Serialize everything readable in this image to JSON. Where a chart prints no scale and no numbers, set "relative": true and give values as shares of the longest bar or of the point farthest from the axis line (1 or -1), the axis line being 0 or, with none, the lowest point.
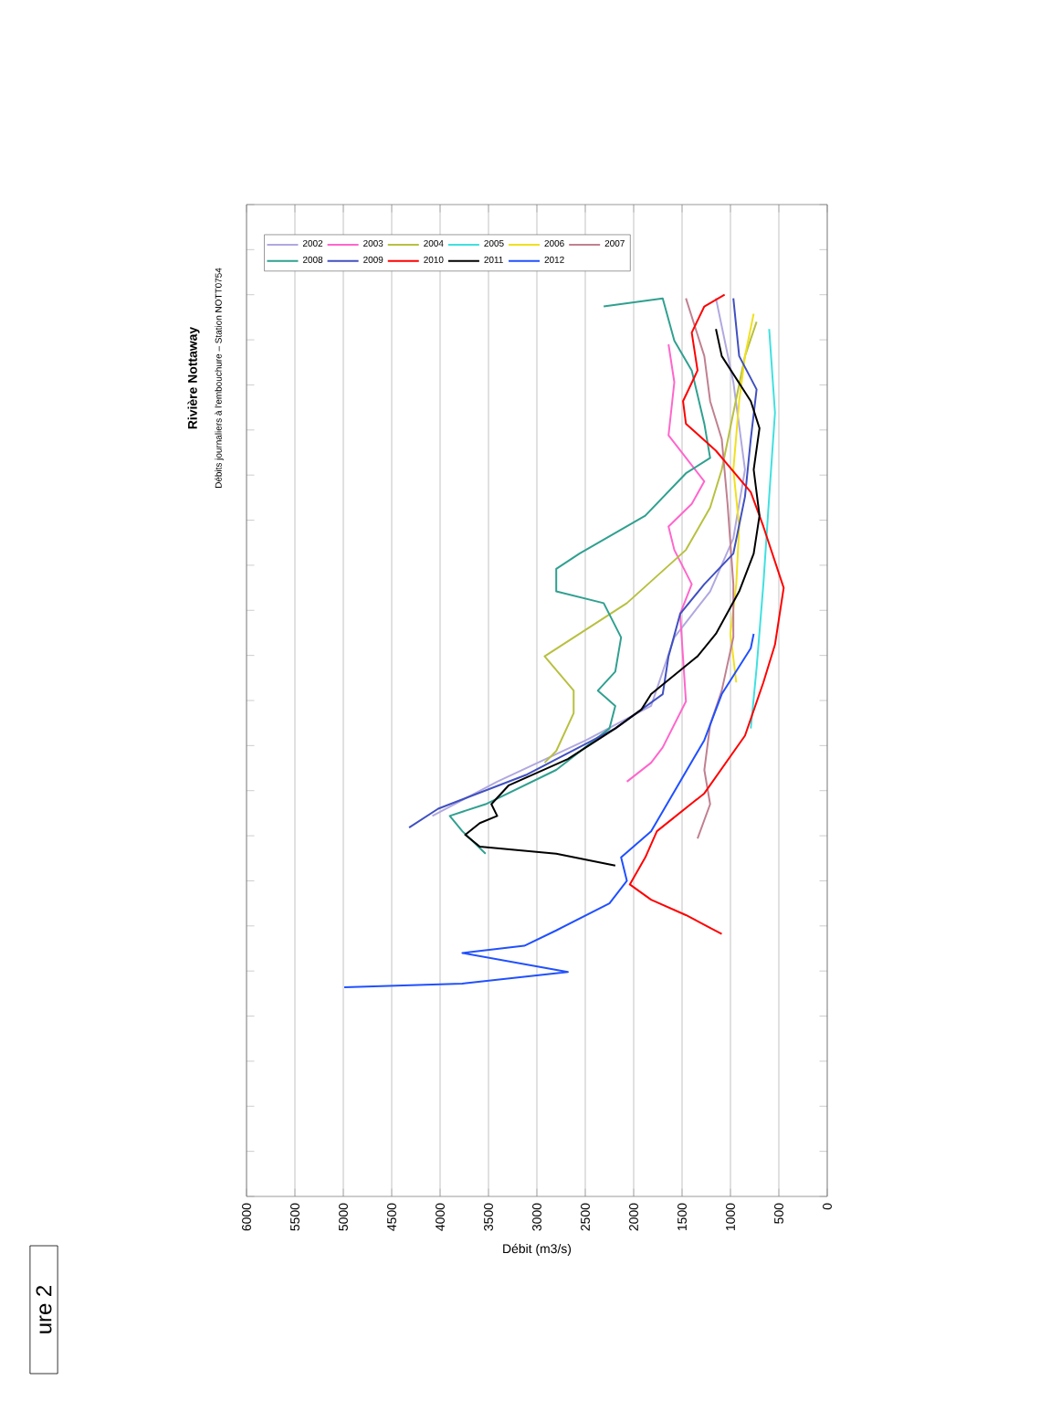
{
  "chart_data": {
    "type": "line",
    "title": "Rivière Nottaway",
    "subtitle": "Débits journaliers à l'embouchure – Station NOTT0754",
    "xlabel": "Débit (m3/s)",
    "annotations": [
      "ure 2"
    ],
    "relative": true,
    "xlim": [
      6000,
      0
    ],
    "xticks": [
      6000,
      5500,
      5000,
      4500,
      4000,
      3500,
      3000,
      2500,
      2000,
      1500,
      1000,
      500,
      0
    ],
    "grid": "x",
    "legend": "top left",
    "series": [
      {
        "name": "2002",
        "color": "#b0a8e0",
        "values": [
          0.996,
          0.903,
          0.806,
          0.73,
          0.671,
          0.62,
          0.544,
          0.506,
          0.46,
          0.422
        ],
        "x": [
          1150,
          970,
          850,
          970,
          1210,
          1580,
          1820,
          2490,
          3410,
          4080
        ]
      },
      {
        "name": "2003",
        "color": "#ff66cc",
        "values": [
          0.945,
          0.903,
          0.844,
          0.793,
          0.768,
          0.743,
          0.717,
          0.679,
          0.646,
          0.549,
          0.498,
          0.481,
          0.46
        ],
        "x": [
          1640,
          1580,
          1640,
          1270,
          1400,
          1640,
          1580,
          1400,
          1520,
          1460,
          1700,
          1820,
          2070
        ]
      },
      {
        "name": "2004",
        "color": "#b8c040",
        "values": [
          0.97,
          0.932,
          0.869,
          0.806,
          0.764,
          0.717,
          0.658,
          0.599,
          0.561,
          0.536,
          0.494,
          0.481
        ],
        "x": [
          730,
          850,
          970,
          1090,
          1210,
          1460,
          2070,
          2920,
          2620,
          2620,
          2800,
          2920
        ]
      },
      {
        "name": "2005",
        "color": "#40e0e0",
        "values": [
          0.962,
          0.869,
          0.776,
          0.679,
          0.586,
          0.519
        ],
        "x": [
          600,
          540,
          600,
          660,
          730,
          790
        ]
      },
      {
        "name": "2006",
        "color": "#f0e020",
        "values": [
          0.979,
          0.932,
          0.882,
          0.806,
          0.743,
          0.679,
          0.624,
          0.57
        ],
        "x": [
          760,
          850,
          910,
          970,
          910,
          940,
          1000,
          940
        ]
      },
      {
        "name": "2007",
        "color": "#c08090",
        "values": [
          0.996,
          0.932,
          0.882,
          0.84,
          0.768,
          0.679,
          0.62,
          0.561,
          0.523,
          0.473,
          0.435,
          0.397
        ],
        "x": [
          1460,
          1270,
          1210,
          1090,
          1030,
          970,
          970,
          1090,
          1210,
          1270,
          1210,
          1340
        ]
      },
      {
        "name": "2008",
        "color": "#30a090",
        "values": [
          0.987,
          0.996,
          0.949,
          0.916,
          0.857,
          0.819,
          0.802,
          0.755,
          0.713,
          0.696,
          0.671,
          0.658,
          0.62,
          0.582,
          0.561,
          0.544,
          0.519,
          0.473,
          0.435,
          0.422,
          0.405,
          0.38
        ],
        "x": [
          2310,
          1700,
          1580,
          1400,
          1270,
          1210,
          1460,
          1880,
          2560,
          2800,
          2800,
          2310,
          2130,
          2190,
          2370,
          2190,
          2250,
          2800,
          3530,
          3900,
          3770,
          3530
        ]
      },
      {
        "name": "2009",
        "color": "#4050c0",
        "values": [
          0.996,
          0.932,
          0.895,
          0.84,
          0.776,
          0.713,
          0.679,
          0.646,
          0.599,
          0.557,
          0.519,
          0.468,
          0.43,
          0.409
        ],
        "x": [
          970,
          910,
          730,
          790,
          850,
          970,
          1270,
          1520,
          1640,
          1700,
          2190,
          3100,
          4020,
          4320
        ]
      },
      {
        "name": "2010",
        "color": "#ff0000",
        "values": [
          0.291,
          0.312,
          0.329,
          0.346,
          0.376,
          0.405,
          0.447,
          0.511,
          0.57,
          0.612,
          0.675,
          0.743,
          0.781,
          0.827,
          0.857,
          0.882,
          0.916,
          0.958,
          0.987,
          1
        ],
        "x": [
          1090,
          1460,
          1820,
          2040,
          1880,
          1760,
          1270,
          850,
          660,
          540,
          450,
          660,
          790,
          1150,
          1460,
          1490,
          1340,
          1400,
          1270,
          1060
        ]
      },
      {
        "name": "2011",
        "color": "#000000",
        "values": [
          0.367,
          0.38,
          0.388,
          0.401,
          0.414,
          0.422,
          0.435,
          0.456,
          0.485,
          0.519,
          0.54,
          0.557,
          0.599,
          0.624,
          0.671,
          0.713,
          0.755,
          0.806,
          0.852,
          0.882,
          0.932,
          0.962
        ],
        "x": [
          2190,
          2800,
          3590,
          3740,
          3590,
          3410,
          3470,
          3290,
          2680,
          2190,
          1920,
          1820,
          1340,
          1150,
          910,
          760,
          700,
          760,
          700,
          790,
          1090,
          1150
        ]
      },
      {
        "name": "2012",
        "color": "#2050ff",
        "values": [
          0.232,
          0.236,
          0.249,
          0.27,
          0.278,
          0.295,
          0.325,
          0.35,
          0.376,
          0.405,
          0.506,
          0.557,
          0.608,
          0.624
        ],
        "x": [
          4990,
          3770,
          2680,
          3770,
          3130,
          2800,
          2250,
          2070,
          2130,
          1820,
          1270,
          1090,
          790,
          760
        ]
      }
    ]
  }
}
